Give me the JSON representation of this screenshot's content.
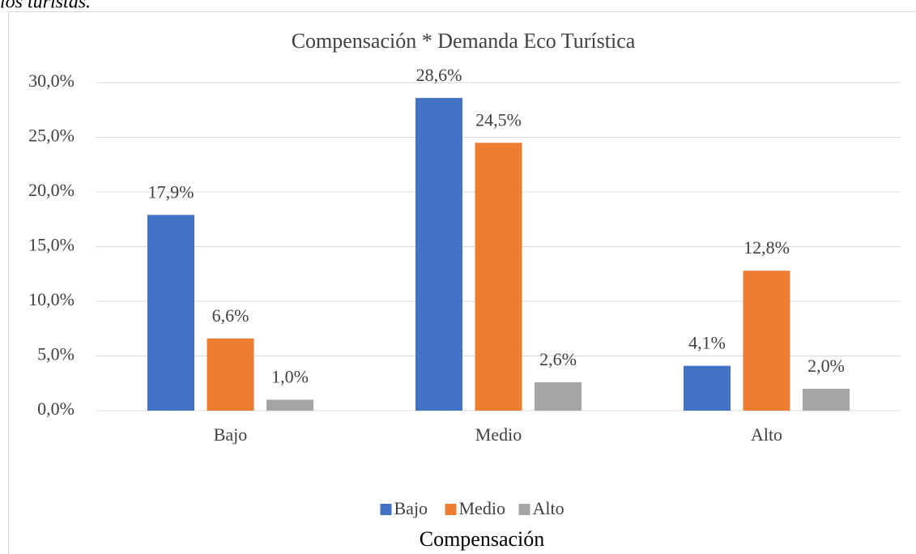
{
  "caption": "los turistas.",
  "chart_data": {
    "type": "bar",
    "title": "Compensación * Demanda Eco Turística",
    "x_label": "Compensación",
    "categories": [
      "Bajo",
      "Medio",
      "Alto"
    ],
    "series": [
      {
        "name": "Bajo",
        "color": "#4472c4",
        "values": [
          17.9,
          28.6,
          4.1
        ],
        "value_labels": [
          "17,9%",
          "28,6%",
          "4,1%"
        ]
      },
      {
        "name": "Medio",
        "color": "#ed7d31",
        "values": [
          6.6,
          24.5,
          12.8
        ],
        "value_labels": [
          "6,6%",
          "24,5%",
          "12,8%"
        ]
      },
      {
        "name": "Alto",
        "color": "#a5a5a5",
        "values": [
          1.0,
          2.6,
          2.0
        ],
        "value_labels": [
          "1,0%",
          "2,6%",
          "2,0%"
        ]
      }
    ],
    "ylim": [
      0,
      30
    ],
    "yticks": [
      {
        "value": 0,
        "label": "0,0%"
      },
      {
        "value": 5,
        "label": "5,0%"
      },
      {
        "value": 10,
        "label": "10,0%"
      },
      {
        "value": 15,
        "label": "15,0%"
      },
      {
        "value": 20,
        "label": "20,0%"
      },
      {
        "value": 25,
        "label": "25,0%"
      },
      {
        "value": 30,
        "label": "30,0%"
      }
    ],
    "grid": true,
    "legend": "bottom"
  }
}
